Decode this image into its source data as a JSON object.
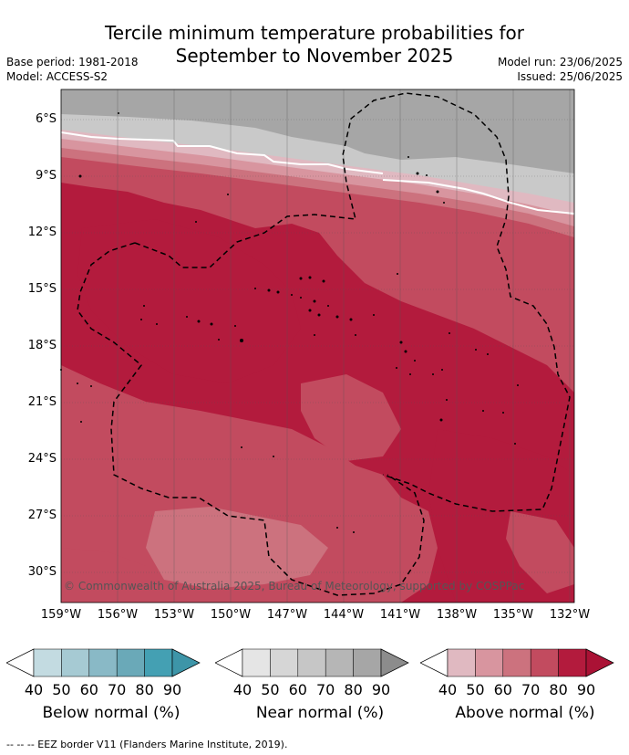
{
  "header": {
    "title_line1": "Tercile minimum temperature probabilities for",
    "title_line2": "September to November 2025",
    "base_period": "Base period: 1981-2018",
    "model": "Model: ACCESS-S2",
    "model_run": "Model run: 23/06/2025",
    "issued": "Issued: 25/06/2025"
  },
  "map": {
    "lat_labels": [
      "6°S",
      "9°S",
      "12°S",
      "15°S",
      "18°S",
      "21°S",
      "24°S",
      "27°S",
      "30°S"
    ],
    "lon_labels": [
      "159°W",
      "156°W",
      "153°W",
      "150°W",
      "147°W",
      "144°W",
      "141°W",
      "138°W",
      "135°W",
      "132°W"
    ],
    "copyright": "© Commonwealth of Australia 2025, Bureau of Meteorology, supported by COSPPac",
    "colors": {
      "near_40": "#c9c9c9",
      "near_60": "#a6a6a6",
      "above_40": "#e0b9c1",
      "above_50": "#d8959f",
      "above_60": "#cc727e",
      "above_70": "#c24b5f",
      "above_80": "#b31b3d"
    }
  },
  "legends": [
    {
      "caption": "Below normal (%)",
      "ticks": [
        "40",
        "50",
        "60",
        "70",
        "80",
        "90"
      ],
      "colors": [
        "#ffffff",
        "#c3dbe1",
        "#a6cad3",
        "#89b9c6",
        "#6aa9b8",
        "#44a0b3",
        "#3d95a8"
      ]
    },
    {
      "caption": "Near normal (%)",
      "ticks": [
        "40",
        "50",
        "60",
        "70",
        "80",
        "90"
      ],
      "colors": [
        "#ffffff",
        "#e5e5e5",
        "#d6d6d6",
        "#c6c6c6",
        "#b6b6b6",
        "#a6a6a6",
        "#8c8c8c"
      ]
    },
    {
      "caption": "Above normal (%)",
      "ticks": [
        "40",
        "50",
        "60",
        "70",
        "80",
        "90"
      ],
      "colors": [
        "#ffffff",
        "#e0b9c1",
        "#d8959f",
        "#cc727e",
        "#c24b5f",
        "#b31b3d",
        "#aa1235"
      ]
    }
  ],
  "footnote": "-- -- -- EEZ border V11 (Flanders Marine Institute, 2019)."
}
